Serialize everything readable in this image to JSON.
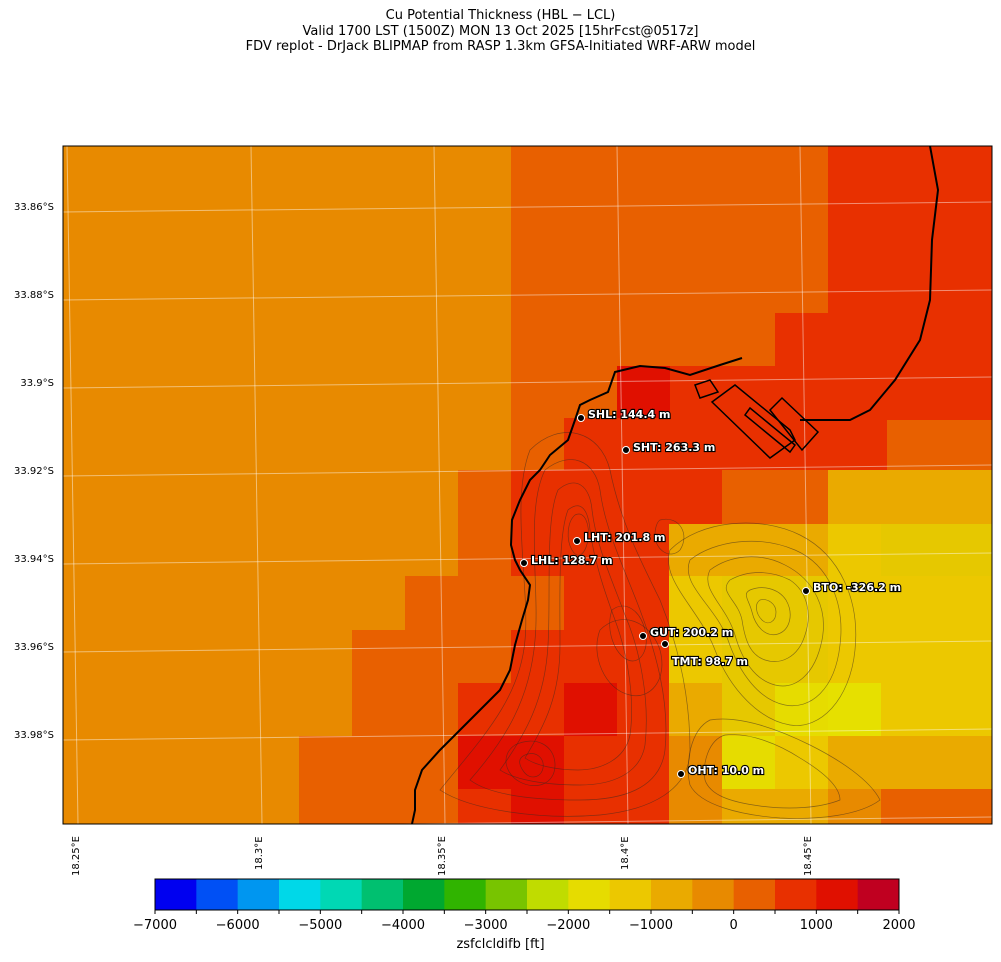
{
  "title": {
    "line1": "Cu Potential Thickness (HBL − LCL)",
    "line2": "Valid 1700 LST (1500Z) MON 13 Oct 2025 [15hrFcst@0517z]",
    "line3": "FDV replot - DrJack BLIPMAP from RASP 1.3km GFSA-Initiated WRF-ARW model"
  },
  "lat_ticks": [
    "33.86°S",
    "33.88°S",
    "33.9°S",
    "33.92°S",
    "33.94°S",
    "33.96°S",
    "33.98°S"
  ],
  "lon_ticks": [
    "18.25°E",
    "18.3°E",
    "18.35°E",
    "18.4°E",
    "18.45°E"
  ],
  "stations": [
    {
      "label": "SHL: 144.4 m"
    },
    {
      "label": "SHT: 263.3 m"
    },
    {
      "label": "LHT: 201.8 m"
    },
    {
      "label": "LHL: 128.7 m"
    },
    {
      "label": "BTO: -326.2 m"
    },
    {
      "label": "GUT: 200.2 m"
    },
    {
      "label": "TMT: 98.7 m"
    },
    {
      "label": "OHT: 10.0 m"
    }
  ],
  "colorbar": {
    "label": "zsfclcldifb [ft]",
    "tick_labels": [
      "−7000",
      "−6000",
      "−5000",
      "−4000",
      "−3000",
      "−2000",
      "−1000",
      "0",
      "1000",
      "2000"
    ],
    "min": -7000,
    "max": 2000,
    "step": 500,
    "colors": [
      "#0000f0",
      "#0050f5",
      "#0096f0",
      "#00d8e8",
      "#00d8b4",
      "#00c070",
      "#00a830",
      "#30b400",
      "#78c400",
      "#c0dc00",
      "#e6dc00",
      "#ecc800",
      "#eaaa00",
      "#e88a00",
      "#e86000",
      "#e83000",
      "#e01000",
      "#c00020"
    ]
  },
  "colors": {
    "orange": "#e88a00",
    "dark_orange": "#e86000",
    "red_orange": "#e83000",
    "red": "#e01000",
    "gold": "#eaaa00",
    "amber": "#ecc800",
    "yellow": "#e6dc00"
  }
}
